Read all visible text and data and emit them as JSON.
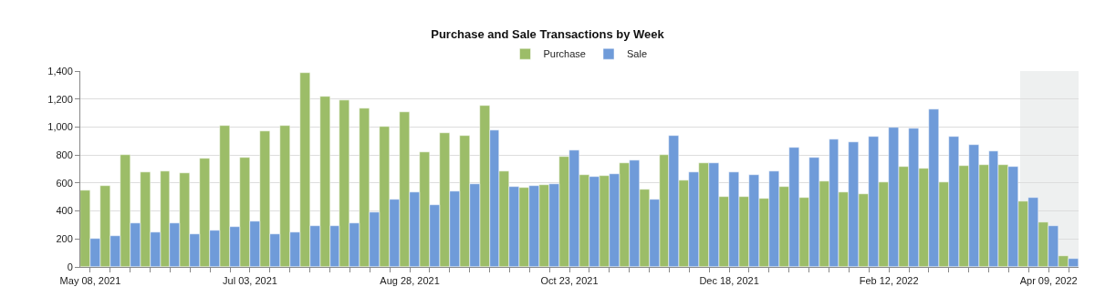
{
  "chart_data": {
    "type": "bar",
    "title": "Purchase and Sale Transactions by Week",
    "x": [
      "2021-05-08",
      "2021-05-15",
      "2021-05-22",
      "2021-05-29",
      "2021-06-05",
      "2021-06-12",
      "2021-06-19",
      "2021-06-26",
      "2021-07-03",
      "2021-07-10",
      "2021-07-17",
      "2021-07-24",
      "2021-07-31",
      "2021-08-07",
      "2021-08-14",
      "2021-08-21",
      "2021-08-28",
      "2021-09-04",
      "2021-09-11",
      "2021-09-18",
      "2021-09-25",
      "2021-10-02",
      "2021-10-09",
      "2021-10-16",
      "2021-10-23",
      "2021-10-30",
      "2021-11-06",
      "2021-11-13",
      "2021-11-20",
      "2021-11-27",
      "2021-12-04",
      "2021-12-11",
      "2021-12-18",
      "2021-12-25",
      "2022-01-01",
      "2022-01-08",
      "2022-01-15",
      "2022-01-22",
      "2022-01-29",
      "2022-02-05",
      "2022-02-12",
      "2022-02-19",
      "2022-02-26",
      "2022-03-05",
      "2022-03-12",
      "2022-03-19",
      "2022-03-26",
      "2022-04-02",
      "2022-04-09",
      "2022-04-16"
    ],
    "series": [
      {
        "name": "Purchase",
        "color": "#9cbd68",
        "values": [
          545,
          580,
          800,
          680,
          685,
          670,
          775,
          1010,
          780,
          970,
          1010,
          1390,
          1220,
          1190,
          1135,
          1000,
          1110,
          820,
          955,
          935,
          1155,
          685,
          565,
          585,
          785,
          660,
          650,
          740,
          555,
          800,
          620,
          745,
          500,
          500,
          490,
          570,
          495,
          615,
          535,
          520,
          605,
          715,
          705,
          605,
          720,
          730,
          730,
          470,
          320,
          80
        ]
      },
      {
        "name": "Sale",
        "color": "#6f9bd9",
        "values": [
          200,
          220,
          310,
          250,
          310,
          235,
          260,
          285,
          325,
          235,
          245,
          290,
          290,
          315,
          390,
          485,
          535,
          440,
          540,
          590,
          980,
          570,
          580,
          590,
          835,
          645,
          665,
          765,
          480,
          935,
          675,
          745,
          675,
          660,
          685,
          855,
          780,
          910,
          895,
          930,
          995,
          990,
          1125,
          930,
          870,
          830,
          715,
          495,
          290,
          60
        ]
      }
    ],
    "xlim": [
      "2021-05-04T12:00",
      "2022-04-19T12:00"
    ],
    "xticks": [
      {
        "value": "2021-05-08",
        "label": "May 08, 2021"
      },
      {
        "value": "2021-05-15",
        "label": null
      },
      {
        "value": "2021-05-22",
        "label": null
      },
      {
        "value": "2021-05-29",
        "label": null
      },
      {
        "value": "2021-06-05",
        "label": null
      },
      {
        "value": "2021-06-12",
        "label": null
      },
      {
        "value": "2021-06-19",
        "label": null
      },
      {
        "value": "2021-06-26",
        "label": null
      },
      {
        "value": "2021-07-03",
        "label": "Jul 03, 2021"
      },
      {
        "value": "2021-07-10",
        "label": null
      },
      {
        "value": "2021-07-17",
        "label": null
      },
      {
        "value": "2021-07-24",
        "label": null
      },
      {
        "value": "2021-07-31",
        "label": null
      },
      {
        "value": "2021-08-07",
        "label": null
      },
      {
        "value": "2021-08-14",
        "label": null
      },
      {
        "value": "2021-08-21",
        "label": null
      },
      {
        "value": "2021-08-28",
        "label": "Aug 28, 2021"
      },
      {
        "value": "2021-09-04",
        "label": null
      },
      {
        "value": "2021-09-11",
        "label": null
      },
      {
        "value": "2021-09-18",
        "label": null
      },
      {
        "value": "2021-09-25",
        "label": null
      },
      {
        "value": "2021-10-02",
        "label": null
      },
      {
        "value": "2021-10-09",
        "label": null
      },
      {
        "value": "2021-10-16",
        "label": null
      },
      {
        "value": "2021-10-23",
        "label": "Oct 23, 2021"
      },
      {
        "value": "2021-10-30",
        "label": null
      },
      {
        "value": "2021-11-06",
        "label": null
      },
      {
        "value": "2021-11-13",
        "label": null
      },
      {
        "value": "2021-11-20",
        "label": null
      },
      {
        "value": "2021-11-27",
        "label": null
      },
      {
        "value": "2021-12-04",
        "label": null
      },
      {
        "value": "2021-12-11",
        "label": null
      },
      {
        "value": "2021-12-18",
        "label": "Dec 18, 2021"
      },
      {
        "value": "2021-12-25",
        "label": null
      },
      {
        "value": "2022-01-01",
        "label": null
      },
      {
        "value": "2022-01-08",
        "label": null
      },
      {
        "value": "2022-01-15",
        "label": null
      },
      {
        "value": "2022-01-22",
        "label": null
      },
      {
        "value": "2022-01-29",
        "label": null
      },
      {
        "value": "2022-02-05",
        "label": null
      },
      {
        "value": "2022-02-12",
        "label": "Feb 12, 2022"
      },
      {
        "value": "2022-02-19",
        "label": null
      },
      {
        "value": "2022-02-26",
        "label": null
      },
      {
        "value": "2022-03-05",
        "label": null
      },
      {
        "value": "2022-03-12",
        "label": null
      },
      {
        "value": "2022-03-19",
        "label": null
      },
      {
        "value": "2022-03-26",
        "label": null
      },
      {
        "value": "2022-04-02",
        "label": null
      },
      {
        "value": "2022-04-09",
        "label": "Apr 09, 2022"
      },
      {
        "value": "2022-04-16",
        "label": null
      }
    ],
    "ylim": [
      0,
      1400
    ],
    "yticks": [
      0,
      200,
      400,
      600,
      800,
      {
        "value": 1000,
        "label": "1,000"
      },
      {
        "value": 1200,
        "label": "1,200"
      },
      {
        "value": 1400,
        "label": "1,400"
      }
    ],
    "bands": [
      {
        "axis": "x",
        "from": "2022-03-30",
        "to": "2022-04-19T12:00",
        "color": "#eef0f0"
      }
    ],
    "grid": "y",
    "legend": "top"
  }
}
